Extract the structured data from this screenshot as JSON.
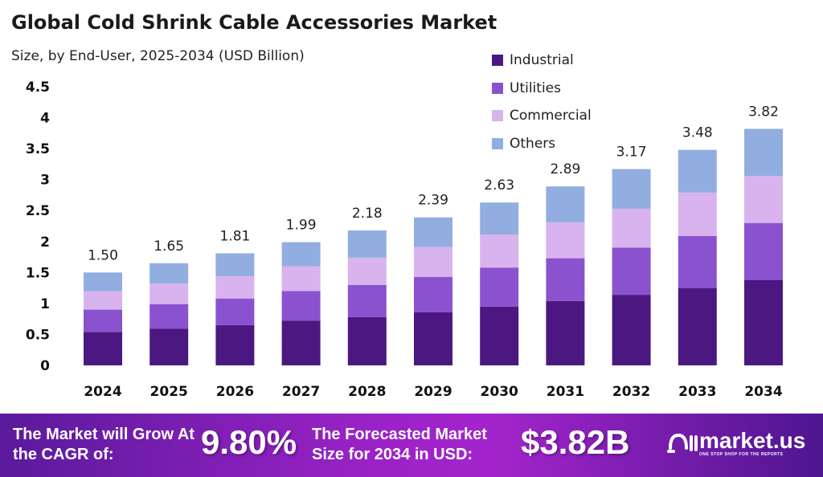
{
  "chart_data": {
    "type": "bar",
    "stacked": true,
    "title": "Global Cold Shrink Cable Accessories Market",
    "subtitle": "Size, by End-User, 2025-2034 (USD Billion)",
    "categories": [
      "2024",
      "2025",
      "2026",
      "2027",
      "2028",
      "2029",
      "2030",
      "2031",
      "2032",
      "2033",
      "2034"
    ],
    "series": [
      {
        "name": "Industrial",
        "color": "#4b1882",
        "values": [
          0.54,
          0.59,
          0.65,
          0.72,
          0.78,
          0.86,
          0.95,
          1.04,
          1.14,
          1.25,
          1.38
        ]
      },
      {
        "name": "Utilities",
        "color": "#8b52cf",
        "values": [
          0.36,
          0.4,
          0.43,
          0.48,
          0.52,
          0.57,
          0.63,
          0.69,
          0.76,
          0.84,
          0.92
        ]
      },
      {
        "name": "Commercial",
        "color": "#d8b3ee",
        "values": [
          0.3,
          0.33,
          0.36,
          0.4,
          0.44,
          0.48,
          0.53,
          0.58,
          0.63,
          0.7,
          0.76
        ]
      },
      {
        "name": "Others",
        "color": "#92aee0",
        "values": [
          0.3,
          0.33,
          0.37,
          0.39,
          0.44,
          0.48,
          0.52,
          0.58,
          0.64,
          0.69,
          0.76
        ]
      }
    ],
    "totals": [
      "1.50",
      "1.65",
      "1.81",
      "1.99",
      "2.18",
      "2.39",
      "2.63",
      "2.89",
      "3.17",
      "3.48",
      "3.82"
    ],
    "yticks": [
      "0",
      "0.5",
      "1",
      "1.5",
      "2",
      "2.5",
      "3",
      "3.5",
      "4",
      "4.5"
    ],
    "ylim": [
      0,
      4.5
    ],
    "grid": false,
    "legend": "top-right"
  },
  "footer": {
    "cagr_text": "The Market will Grow At the CAGR of:",
    "cagr": "9.80%",
    "forecast_text": "The Forecasted Market Size for 2034 in USD:",
    "forecast": "$3.82B",
    "logo": "market.us",
    "logo_tag": "ONE STOP SHOP FOR THE REPORTS"
  }
}
